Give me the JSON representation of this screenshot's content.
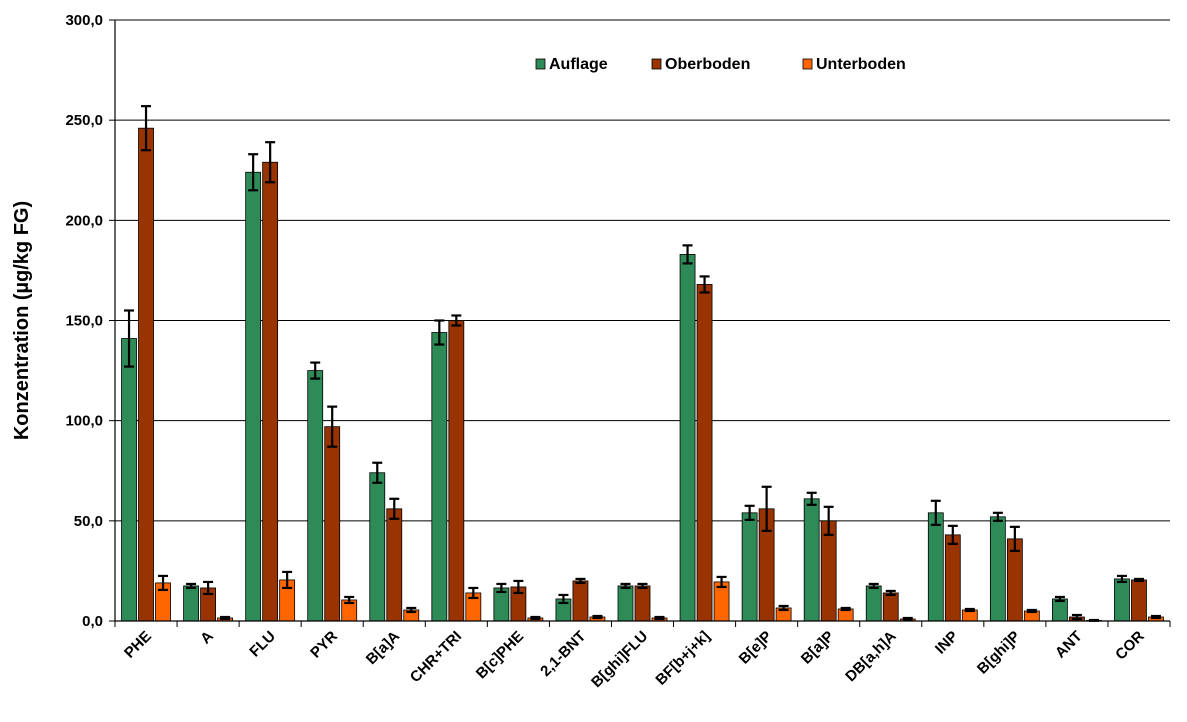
{
  "chart_data": {
    "type": "bar",
    "title": "",
    "xlabel": "",
    "ylabel": "Konzentration (µg/kg FG)",
    "ylim": [
      0,
      300
    ],
    "yticks": [
      "0,0",
      "50,0",
      "100,0",
      "150,0",
      "200,0",
      "250,0",
      "300,0"
    ],
    "grid": true,
    "legend_position": "top-center",
    "categories": [
      "PHE",
      "A",
      "FLU",
      "PYR",
      "B[a]A",
      "CHR+TRI",
      "B[c]PHE",
      "2,1-BNT",
      "B[ghi]FLU",
      "BF[b+j+k]",
      "B[e]P",
      "B[a]P",
      "DB[a,h]A",
      "INP",
      "B[ghi]P",
      "ANT",
      "COR"
    ],
    "series": [
      {
        "name": "Auflage",
        "color": "#2e8b57",
        "values": [
          141,
          17.5,
          224,
          125,
          74,
          144,
          16.5,
          11,
          17.5,
          183,
          54,
          61,
          17.5,
          54,
          52,
          11,
          21
        ],
        "errors": [
          14,
          1,
          9,
          4,
          5,
          6,
          2,
          2,
          1,
          4.5,
          3.5,
          3,
          1,
          6,
          2,
          1,
          1.5
        ]
      },
      {
        "name": "Oberboden",
        "color": "#993300",
        "values": [
          246,
          16.5,
          229,
          97,
          56,
          150,
          17,
          20,
          17.5,
          168,
          56,
          50,
          14,
          43,
          41,
          2,
          20.5
        ],
        "errors": [
          11,
          3,
          10,
          10,
          5,
          2.5,
          3,
          1,
          1,
          4,
          11,
          7,
          1,
          4.5,
          6,
          1,
          0.5
        ]
      },
      {
        "name": "Unterboden",
        "color": "#ff6600",
        "values": [
          19,
          1.5,
          20.5,
          10.5,
          5.5,
          14,
          1.5,
          2,
          1.5,
          19.5,
          6.5,
          6,
          1,
          5.5,
          5,
          0.3,
          2
        ],
        "errors": [
          3.5,
          0.5,
          4,
          1.5,
          1,
          2.5,
          0.5,
          0.5,
          0.5,
          2.5,
          1,
          0.5,
          0.5,
          0.5,
          0.5,
          0.2,
          0.5
        ]
      }
    ]
  }
}
